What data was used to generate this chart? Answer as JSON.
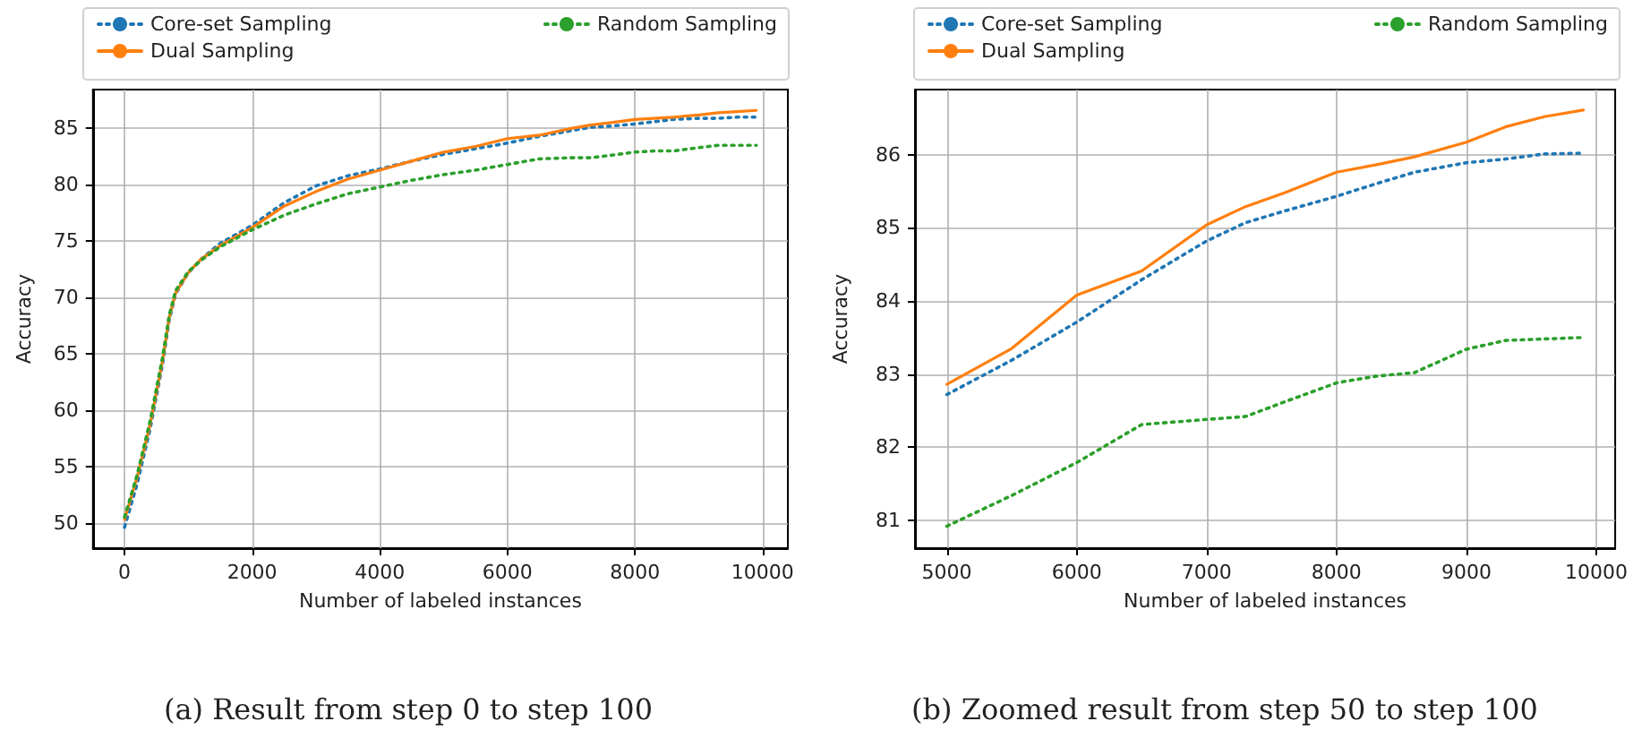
{
  "chart_data": [
    {
      "type": "line",
      "xlabel": "Number of labeled instances",
      "ylabel": "Accuracy",
      "annotations": [
        "(a) Result from step 0 to step 100"
      ],
      "x": [
        0,
        200,
        400,
        600,
        700,
        800,
        1000,
        1200,
        1500,
        2000,
        2500,
        3000,
        3500,
        4000,
        4500,
        5000,
        5500,
        6000,
        6500,
        7000,
        7300,
        7600,
        8000,
        8300,
        8600,
        9000,
        9300,
        9600,
        9900
      ],
      "series": [
        {
          "name": "Core-set Sampling",
          "color": "#1f77b4",
          "line_style": "dotted",
          "values": [
            49.6,
            53.5,
            58.3,
            64.2,
            68.0,
            70.3,
            72.2,
            73.4,
            74.8,
            76.4,
            78.4,
            79.9,
            80.8,
            81.4,
            82.1,
            82.7,
            83.2,
            83.7,
            84.3,
            84.8,
            85.1,
            85.2,
            85.4,
            85.6,
            85.8,
            85.9,
            85.9,
            86.0,
            86.0
          ]
        },
        {
          "name": "Dual Sampling",
          "color": "#ff7f0e",
          "line_style": "solid",
          "values": [
            50.3,
            54.1,
            58.7,
            64.5,
            68.2,
            70.4,
            72.2,
            73.4,
            74.6,
            76.2,
            78.1,
            79.4,
            80.5,
            81.3,
            82.1,
            82.9,
            83.4,
            84.1,
            84.4,
            85.0,
            85.3,
            85.5,
            85.8,
            85.9,
            86.0,
            86.2,
            86.4,
            86.5,
            86.6
          ]
        },
        {
          "name": "Random Sampling",
          "color": "#2ca02c",
          "line_style": "dotted",
          "values": [
            50.5,
            54.3,
            59.0,
            64.8,
            68.4,
            70.6,
            72.3,
            73.3,
            74.5,
            76.0,
            77.3,
            78.3,
            79.2,
            79.8,
            80.4,
            80.9,
            81.3,
            81.8,
            82.3,
            82.4,
            82.4,
            82.6,
            82.9,
            83.0,
            83.0,
            83.3,
            83.5,
            83.5,
            83.5
          ]
        }
      ],
      "xlim": [
        -495,
        10395
      ],
      "xticks": [
        0,
        2000,
        4000,
        6000,
        8000,
        10000
      ],
      "ylim": [
        47.75,
        88.45
      ],
      "yticks": [
        50,
        55,
        60,
        65,
        70,
        75,
        80,
        85
      ],
      "grid": true,
      "legend": "top"
    },
    {
      "type": "line",
      "xlabel": "Number of labeled instances",
      "ylabel": "Accuracy",
      "annotations": [
        "(b) Zoomed result from step 50 to step 100"
      ],
      "x": [
        5000,
        5500,
        6000,
        6500,
        7000,
        7300,
        7600,
        8000,
        8300,
        8600,
        9000,
        9300,
        9600,
        9900
      ],
      "series": [
        {
          "name": "Core-set Sampling",
          "color": "#1f77b4",
          "line_style": "dotted",
          "values": [
            82.72,
            83.19,
            83.71,
            84.29,
            84.82,
            85.07,
            85.23,
            85.43,
            85.6,
            85.76,
            85.89,
            85.94,
            86.01,
            86.02
          ]
        },
        {
          "name": "Dual Sampling",
          "color": "#ff7f0e",
          "line_style": "solid",
          "values": [
            82.86,
            83.35,
            84.08,
            84.41,
            85.04,
            85.29,
            85.48,
            85.76,
            85.86,
            85.97,
            86.17,
            86.38,
            86.52,
            86.61
          ]
        },
        {
          "name": "Random Sampling",
          "color": "#2ca02c",
          "line_style": "dotted",
          "values": [
            80.92,
            81.34,
            81.79,
            82.31,
            82.38,
            82.42,
            82.62,
            82.88,
            82.97,
            83.02,
            83.34,
            83.46,
            83.48,
            83.5
          ]
        }
      ],
      "xlim": [
        4755,
        10145
      ],
      "xticks": [
        5000,
        6000,
        7000,
        8000,
        9000,
        10000
      ],
      "ylim": [
        80.62,
        86.89
      ],
      "yticks": [
        81,
        82,
        83,
        84,
        85,
        86
      ],
      "grid": true,
      "legend": "top"
    }
  ]
}
